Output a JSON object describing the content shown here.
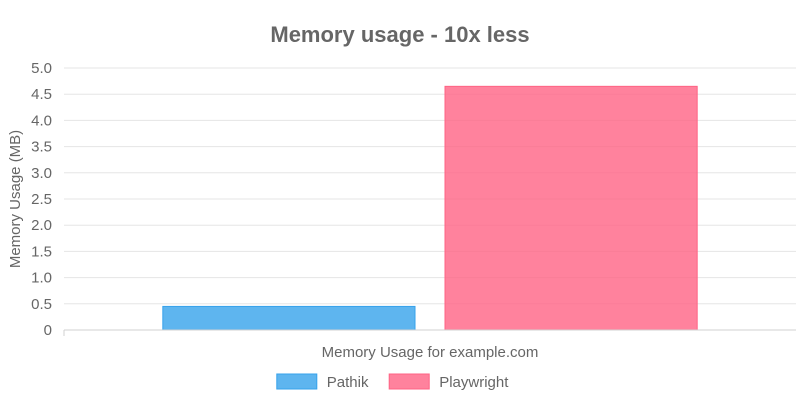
{
  "chart_data": {
    "type": "bar",
    "title": "Memory usage - 10x less",
    "xlabel": "Memory Usage for example.com",
    "ylabel": "Memory Usage (MB)",
    "categories": [
      "Memory Usage for example.com"
    ],
    "series": [
      {
        "name": "Pathik",
        "values": [
          0.45
        ],
        "color": "#36a2eb"
      },
      {
        "name": "Playwright",
        "values": [
          4.65
        ],
        "color": "#ff6384"
      }
    ],
    "ylim": [
      0,
      5.0
    ],
    "yticks": [
      "0",
      "0.5",
      "1.0",
      "1.5",
      "2.0",
      "2.5",
      "3.0",
      "3.5",
      "4.0",
      "4.5",
      "5.0"
    ],
    "grid": true,
    "legend_position": "bottom"
  }
}
